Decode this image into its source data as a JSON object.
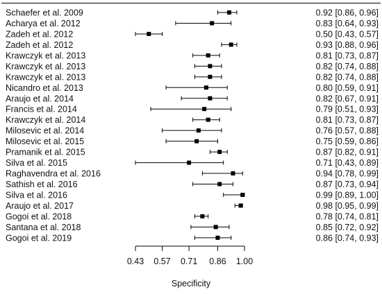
{
  "chart_data": {
    "type": "forest",
    "xlabel": "Specificity",
    "x_ticks": [
      0.43,
      0.57,
      0.71,
      0.86,
      1.0
    ],
    "x_tick_labels": [
      "0.43",
      "0.57",
      "0.71",
      "0.86",
      "1.00"
    ],
    "x_range": [
      0.43,
      1.0
    ],
    "studies": [
      {
        "label": "Schaefer et al. 2009",
        "est": 0.92,
        "lo": 0.86,
        "hi": 0.96,
        "ci_text": "0.92 [0.86, 0.96]"
      },
      {
        "label": "Acharya et al. 2012",
        "est": 0.83,
        "lo": 0.64,
        "hi": 0.93,
        "ci_text": "0.83 [0.64, 0.93]"
      },
      {
        "label": "Zadeh et al. 2012",
        "est": 0.5,
        "lo": 0.43,
        "hi": 0.57,
        "ci_text": "0.50 [0.43, 0.57]"
      },
      {
        "label": "Zadeh et al. 2012",
        "est": 0.93,
        "lo": 0.88,
        "hi": 0.96,
        "ci_text": "0.93 [0.88, 0.96]"
      },
      {
        "label": "Krawczyk et al. 2013",
        "est": 0.81,
        "lo": 0.73,
        "hi": 0.87,
        "ci_text": "0.81 [0.73, 0.87]"
      },
      {
        "label": "Krawczyk et al. 2013",
        "est": 0.82,
        "lo": 0.74,
        "hi": 0.88,
        "ci_text": "0.82 [0.74, 0.88]"
      },
      {
        "label": "Krawczyk et al. 2013",
        "est": 0.82,
        "lo": 0.74,
        "hi": 0.88,
        "ci_text": "0.82 [0.74, 0.88]"
      },
      {
        "label": "Nicandro et al. 2013",
        "est": 0.8,
        "lo": 0.59,
        "hi": 0.91,
        "ci_text": "0.80 [0.59, 0.91]"
      },
      {
        "label": "Araujo et al. 2014",
        "est": 0.82,
        "lo": 0.67,
        "hi": 0.91,
        "ci_text": "0.82 [0.67, 0.91]"
      },
      {
        "label": "Francis et al. 2014",
        "est": 0.79,
        "lo": 0.51,
        "hi": 0.93,
        "ci_text": "0.79 [0.51, 0.93]"
      },
      {
        "label": "Krawczyk et al. 2014",
        "est": 0.81,
        "lo": 0.73,
        "hi": 0.87,
        "ci_text": "0.81 [0.73, 0.87]"
      },
      {
        "label": "Milosevic et al. 2014",
        "est": 0.76,
        "lo": 0.57,
        "hi": 0.88,
        "ci_text": "0.76 [0.57, 0.88]"
      },
      {
        "label": "Milosevic et al. 2015",
        "est": 0.75,
        "lo": 0.59,
        "hi": 0.86,
        "ci_text": "0.75 [0.59, 0.86]"
      },
      {
        "label": "Pramanik et al. 2015",
        "est": 0.87,
        "lo": 0.82,
        "hi": 0.91,
        "ci_text": "0.87 [0.82, 0.91]"
      },
      {
        "label": "Silva et al. 2015",
        "est": 0.71,
        "lo": 0.43,
        "hi": 0.89,
        "ci_text": "0.71 [0.43, 0.89]"
      },
      {
        "label": "Raghavendra et al. 2016",
        "est": 0.94,
        "lo": 0.78,
        "hi": 0.99,
        "ci_text": "0.94 [0.78, 0.99]"
      },
      {
        "label": "Sathish et al. 2016",
        "est": 0.87,
        "lo": 0.73,
        "hi": 0.94,
        "ci_text": "0.87 [0.73, 0.94]"
      },
      {
        "label": "Silva et al. 2016",
        "est": 0.99,
        "lo": 0.89,
        "hi": 1.0,
        "ci_text": "0.99 [0.89, 1.00]"
      },
      {
        "label": "Araujo et al. 2017",
        "est": 0.98,
        "lo": 0.95,
        "hi": 0.99,
        "ci_text": "0.98 [0.95, 0.99]"
      },
      {
        "label": "Gogoi et al. 2018",
        "est": 0.78,
        "lo": 0.74,
        "hi": 0.81,
        "ci_text": "0.78 [0.74, 0.81]"
      },
      {
        "label": "Santana et al. 2018",
        "est": 0.85,
        "lo": 0.72,
        "hi": 0.92,
        "ci_text": "0.85 [0.72, 0.92]"
      },
      {
        "label": "Gogoi et al. 2019",
        "est": 0.86,
        "lo": 0.74,
        "hi": 0.93,
        "ci_text": "0.86 [0.74, 0.93]"
      }
    ]
  }
}
